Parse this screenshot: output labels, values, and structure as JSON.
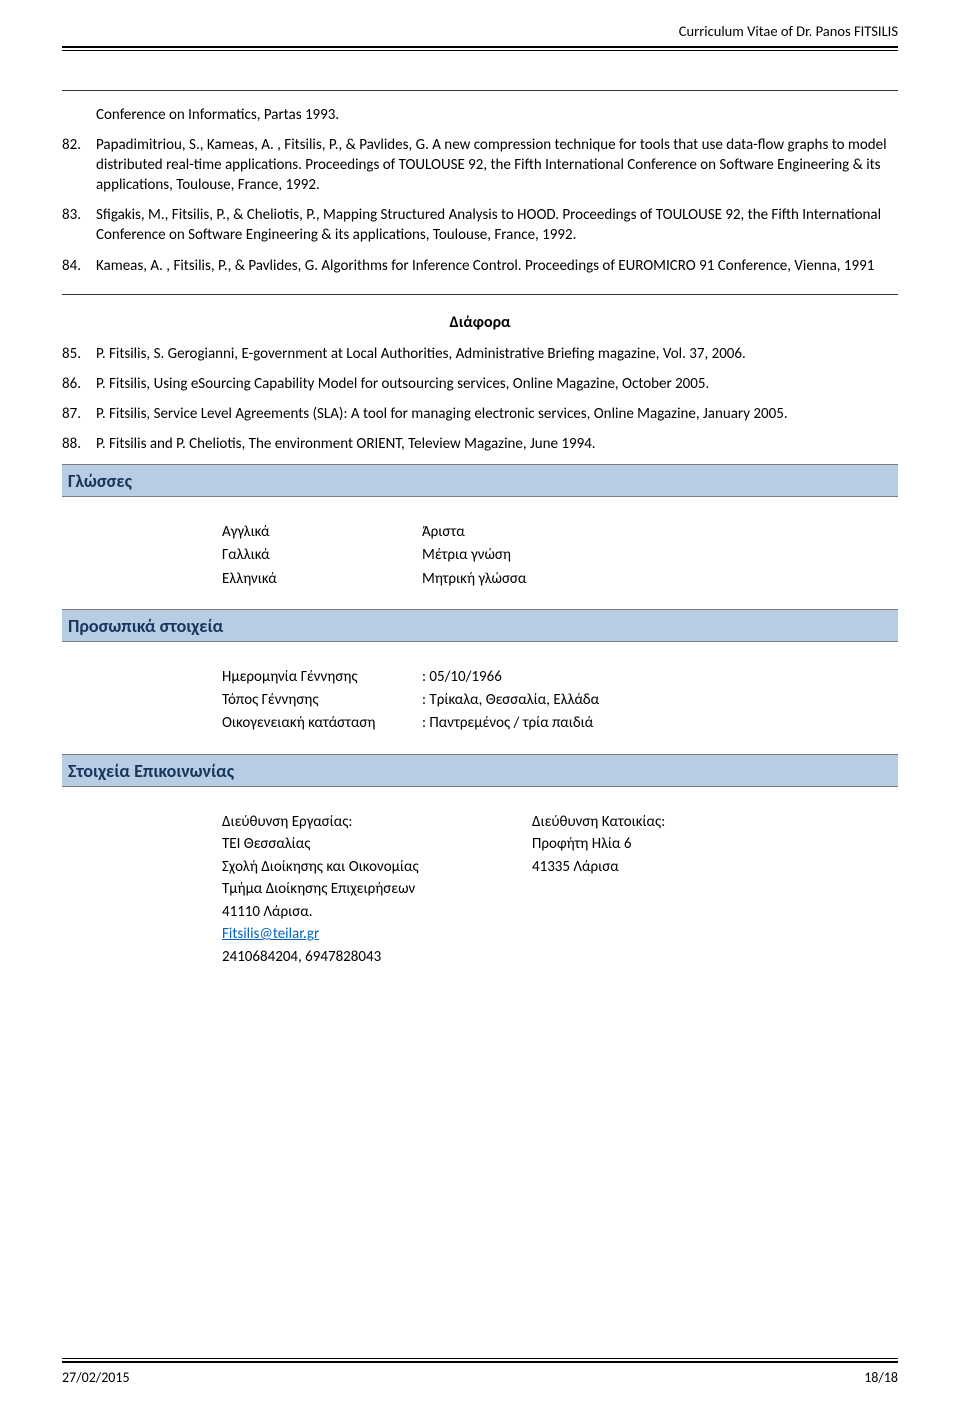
{
  "header": {
    "title": "Curriculum Vitae of Dr. Panos FITSILIS"
  },
  "refs_top": [
    {
      "num": "",
      "text": "Conference on Informatics, Partas 1993."
    },
    {
      "num": "82.",
      "text": "Papadimitriou, S., Kameas, A. , Fitsilis, P., & Pavlides, G. A new compression technique for tools that use data-flow graphs to model distributed real-time applications. Proceedings of TOULOUSE 92, the Fifth International Conference on Software Engineering & its applications, Toulouse, France, 1992."
    },
    {
      "num": "83.",
      "text": "Sfigakis, M., Fitsilis, P., & Cheliotis, P., Mapping Structured Analysis to HOOD. Proceedings of TOULOUSE 92, the Fifth International Conference on Software Engineering & its applications, Toulouse, France, 1992."
    },
    {
      "num": "84.",
      "text": "Kameas, A. , Fitsilis, P., & Pavlides, G.  Algorithms for Inference Control. Proceedings of EUROMICRO 91 Conference, Vienna, 1991"
    }
  ],
  "misc_heading": "Διάφορα",
  "refs_misc": [
    {
      "num": "85.",
      "text": "P. Fitsilis, S. Gerogianni, E-government at Local Authorities, Administrative Briefing magazine, Vol. 37, 2006."
    },
    {
      "num": "86.",
      "text": "P. Fitsilis, Using eSourcing Capability Model for outsourcing services, Online Magazine, October 2005."
    },
    {
      "num": "87.",
      "text": "P. Fitsilis, Service Level Agreements (SLA): A tool for managing electronic services, Online Magazine, January 2005."
    },
    {
      "num": "88.",
      "text": "P. Fitsilis and P. Cheliotis, The environment ORIENT, Teleview Magazine, June 1994."
    }
  ],
  "sections": {
    "languages_title": "Γλώσσες",
    "personal_title": "Προσωπικά στοιχεία",
    "contact_title": "Στοιχεία Επικοινωνίας"
  },
  "languages": [
    {
      "name": "Αγγλικά",
      "level": "Άριστα"
    },
    {
      "name": "Γαλλικά",
      "level": "Μέτρια γνώση"
    },
    {
      "name": "Ελληνικά",
      "level": "Μητρική γλώσσα"
    }
  ],
  "personal": [
    {
      "key": "Ημερομηνία Γέννησης",
      "val": ": 05/10/1966"
    },
    {
      "key": "Τόπος Γέννησης",
      "val": ": Τρίκαλα, Θεσσαλία, Ελλάδα"
    },
    {
      "key": "Οικογενειακή κατάσταση",
      "val": ": Παντρεμένος / τρία παιδιά"
    }
  ],
  "contact": {
    "work_heading": "Διεύθυνση Εργασίας:",
    "work_lines": [
      "ΤΕΙ Θεσσαλίας",
      "Σχολή Διοίκησης και Οικονομίας",
      "Τμήμα Διοίκησης Επιχειρήσεων",
      "41110 Λάρισα."
    ],
    "email": "Fitsilis@teilar.gr",
    "phones": "2410684204, 6947828043",
    "home_heading": "Διεύθυνση Κατοικίας:",
    "home_lines": [
      "",
      "Προφήτη Ηλία 6",
      "41335 Λάρισα"
    ]
  },
  "footer": {
    "date": "27/02/2015",
    "page": "18/18"
  },
  "colors": {
    "section_bar_bg": "#b8cce4",
    "section_bar_text": "#17365d",
    "link": "#0563c1"
  }
}
